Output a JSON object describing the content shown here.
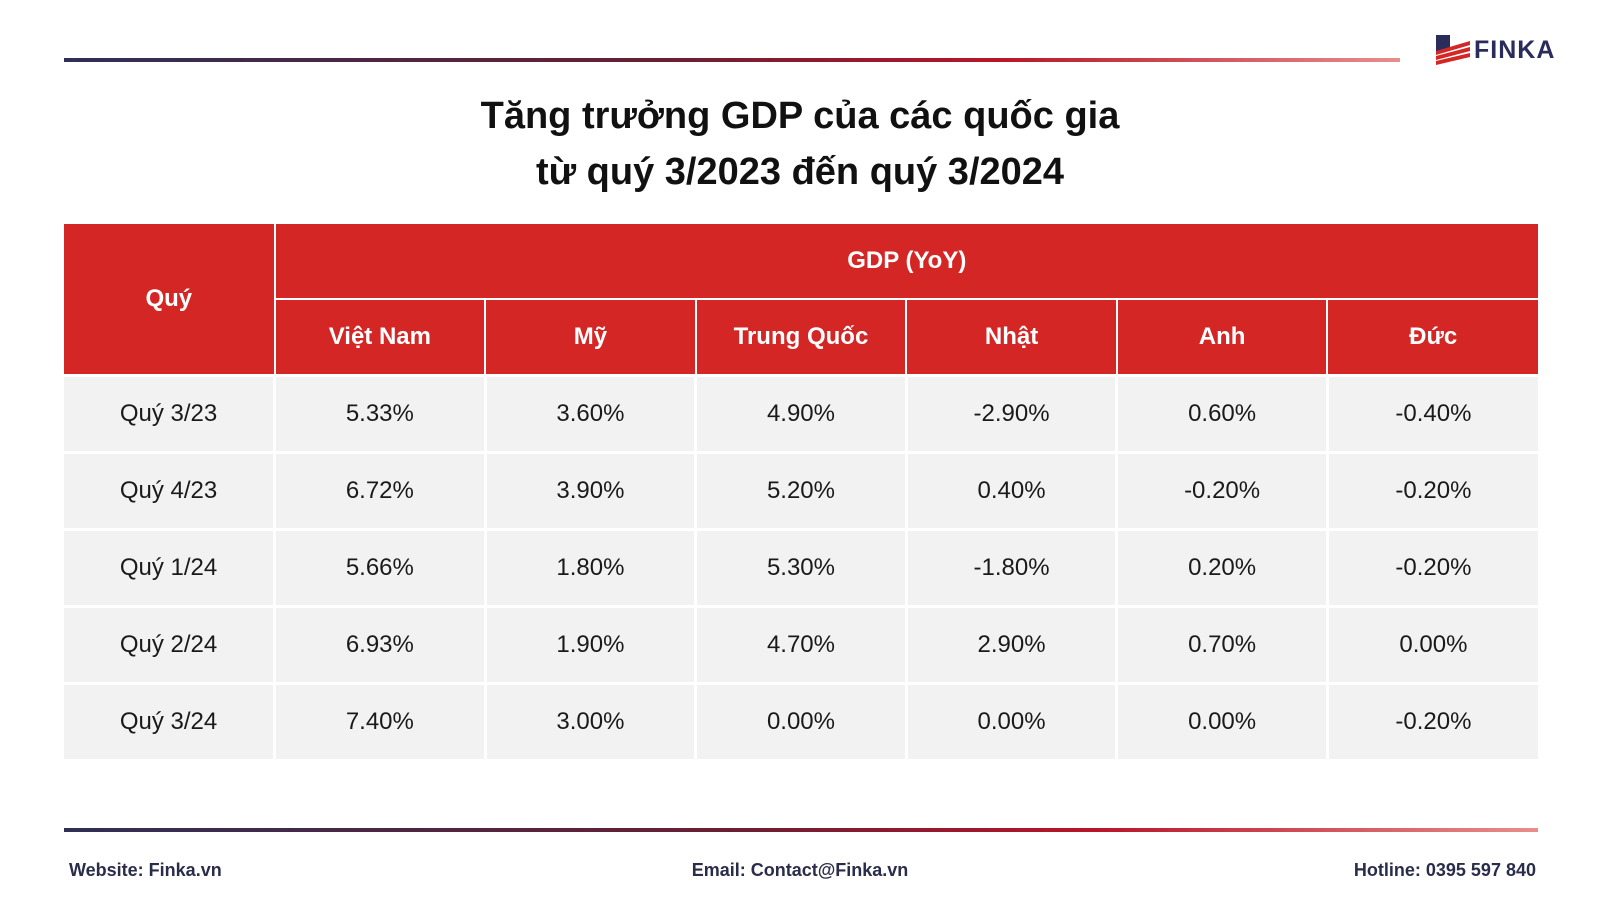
{
  "brand": {
    "name": "FINKA",
    "primary_color": "#d42625",
    "navy_color": "#2a2d5c"
  },
  "title": {
    "line1": "Tăng trưởng GDP của các quốc gia",
    "line2": "từ quý 3/2023 đến quý 3/2024"
  },
  "chart_data": {
    "type": "table",
    "title": "Tăng trưởng GDP của các quốc gia từ quý 3/2023 đến quý 3/2024",
    "row_header": "Quý",
    "group_header": "GDP (YoY)",
    "columns": [
      "Việt Nam",
      "Mỹ",
      "Trung Quốc",
      "Nhật",
      "Anh",
      "Đức"
    ],
    "rows": [
      {
        "label": "Quý 3/23",
        "values": [
          "5.33%",
          "3.60%",
          "4.90%",
          "-2.90%",
          "0.60%",
          "-0.40%"
        ]
      },
      {
        "label": "Quý 4/23",
        "values": [
          "6.72%",
          "3.90%",
          "5.20%",
          "0.40%",
          "-0.20%",
          "-0.20%"
        ]
      },
      {
        "label": "Quý 1/24",
        "values": [
          "5.66%",
          "1.80%",
          "5.30%",
          "-1.80%",
          "0.20%",
          "-0.20%"
        ]
      },
      {
        "label": "Quý 2/24",
        "values": [
          "6.93%",
          "1.90%",
          "4.70%",
          "2.90%",
          "0.70%",
          "0.00%"
        ]
      },
      {
        "label": "Quý 3/24",
        "values": [
          "7.40%",
          "3.00%",
          "0.00%",
          "0.00%",
          "0.00%",
          "-0.20%"
        ]
      }
    ]
  },
  "footer": {
    "website": "Website: Finka.vn",
    "email": "Email: Contact@Finka.vn",
    "hotline": "Hotline: 0395 597 840"
  }
}
